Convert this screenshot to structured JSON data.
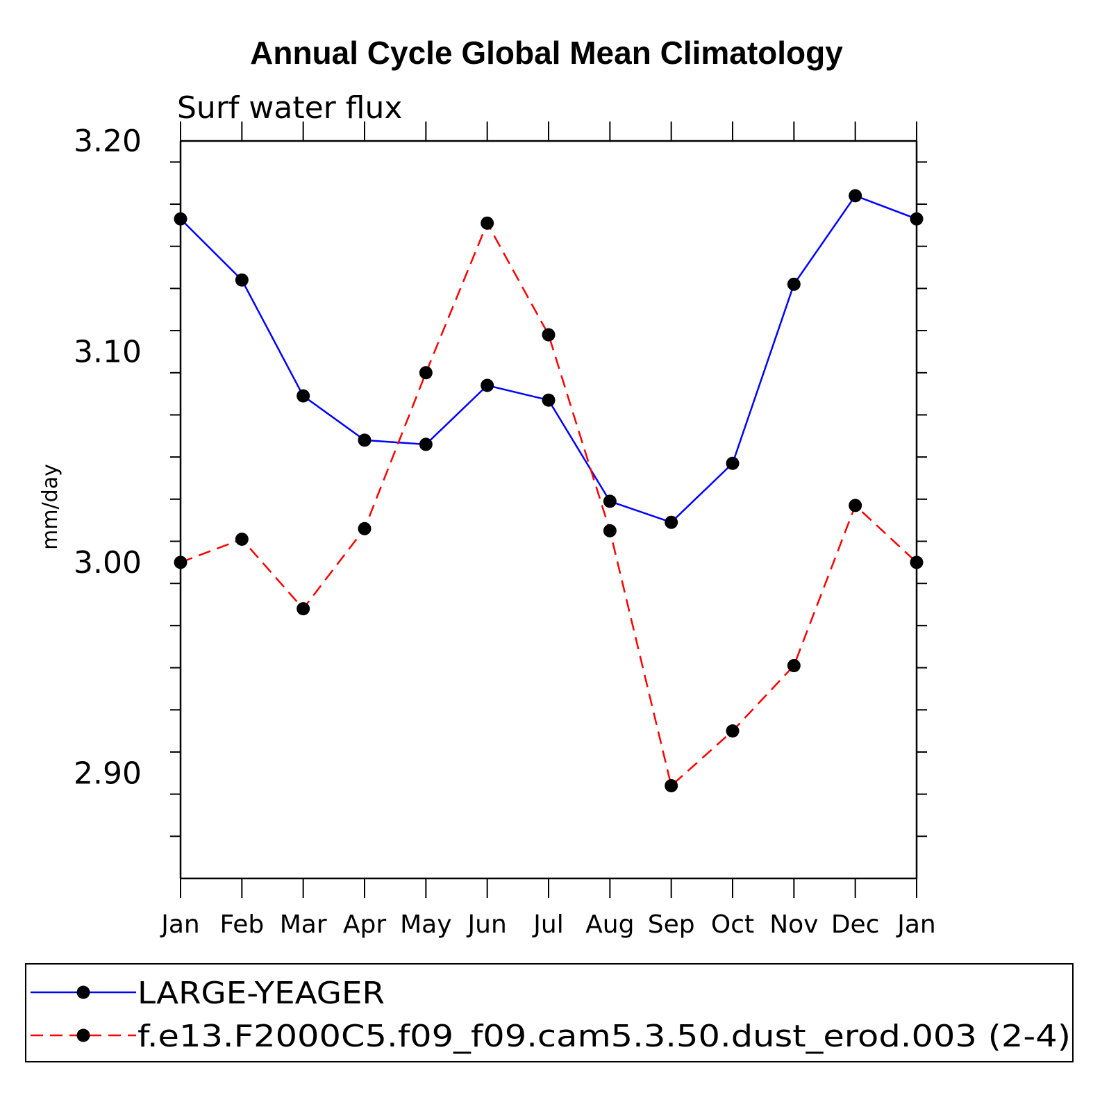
{
  "chart_data": {
    "type": "line",
    "title": "Annual Cycle Global Mean Climatology",
    "subtitle": "Surf water flux",
    "xlabel": "",
    "ylabel": "mm/day",
    "categories": [
      "Jan",
      "Feb",
      "Mar",
      "Apr",
      "May",
      "Jun",
      "Jul",
      "Aug",
      "Sep",
      "Oct",
      "Nov",
      "Dec",
      "Jan"
    ],
    "ylim": [
      2.85,
      3.2
    ],
    "yticks": [
      2.9,
      3.0,
      3.1,
      3.2
    ],
    "ytick_labels": [
      "2.90",
      "3.00",
      "3.10",
      "3.20"
    ],
    "grid": false,
    "legend_position": "bottom",
    "series": [
      {
        "name": "LARGE-YEAGER",
        "color": "#0000ff",
        "dash": "solid",
        "values": [
          3.163,
          3.134,
          3.079,
          3.058,
          3.056,
          3.084,
          3.077,
          3.029,
          3.019,
          3.047,
          3.132,
          3.174,
          3.163
        ]
      },
      {
        "name": "f.e13.F2000C5.f09_f09.cam5.3.50.dust_erod.003 (2-4)",
        "color": "#ff0000",
        "dash": "dashed",
        "values": [
          3.0,
          3.011,
          2.978,
          3.016,
          3.09,
          3.161,
          3.108,
          3.015,
          2.894,
          2.92,
          2.951,
          3.027,
          3.0
        ]
      }
    ]
  }
}
